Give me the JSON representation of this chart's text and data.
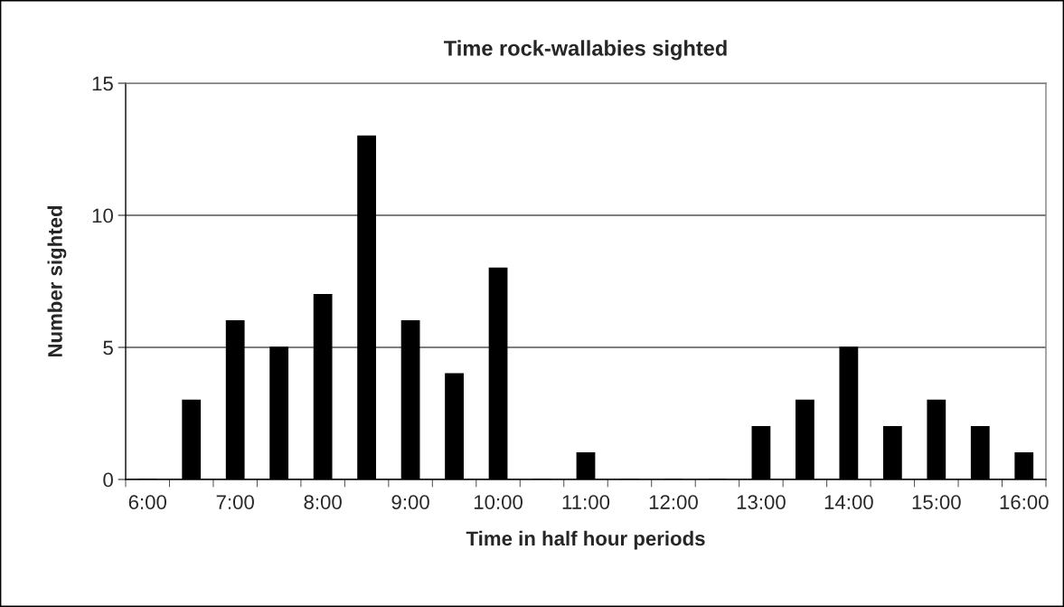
{
  "chart_data": {
    "type": "bar",
    "title": "Time rock-wallabies sighted",
    "xlabel": "Time in half hour periods",
    "ylabel": "Number sighted",
    "categories": [
      "6:00",
      null,
      "7:00",
      null,
      "8:00",
      null,
      "9:00",
      null,
      "10:00",
      null,
      "11:00",
      null,
      "12:00",
      null,
      "13:00",
      null,
      "14:00",
      null,
      "15:00",
      null,
      "16:00"
    ],
    "values": [
      0,
      3,
      6,
      5,
      7,
      13,
      6,
      4,
      8,
      0,
      1,
      0,
      0,
      0,
      2,
      3,
      5,
      2,
      3,
      2,
      1
    ],
    "color": "#000000",
    "ylim": [
      0,
      15
    ],
    "yticks": [
      0,
      5,
      10,
      15
    ],
    "grid": "y",
    "legend": false
  }
}
